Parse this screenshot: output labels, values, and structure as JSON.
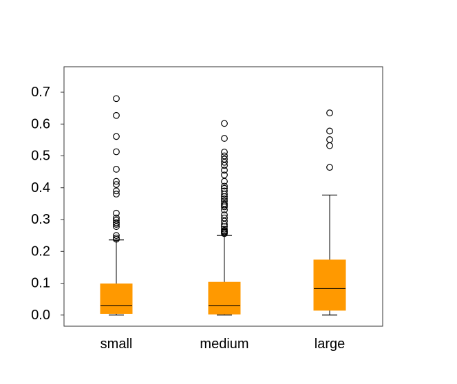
{
  "chart_data": {
    "type": "boxplot",
    "title": "",
    "xlabel": "",
    "ylabel": "",
    "ylim": [
      -0.035,
      0.78
    ],
    "yticks": [
      0.0,
      0.1,
      0.2,
      0.3,
      0.4,
      0.5,
      0.6,
      0.7
    ],
    "ytick_labels": [
      "0.0",
      "0.1",
      "0.2",
      "0.3",
      "0.4",
      "0.5",
      "0.6",
      "0.7"
    ],
    "grid": false,
    "box_color": "#ff9900",
    "median_color": "#000000",
    "categories": [
      "small",
      "medium",
      "large"
    ],
    "boxes": [
      {
        "name": "small",
        "whisker_low": 0.0,
        "q1": 0.005,
        "median": 0.03,
        "q3": 0.098,
        "whisker_high": 0.236,
        "outliers": [
          0.68,
          0.627,
          0.561,
          0.513,
          0.458,
          0.42,
          0.41,
          0.39,
          0.38,
          0.32,
          0.305,
          0.298,
          0.29,
          0.285,
          0.278,
          0.25,
          0.242,
          0.238
        ]
      },
      {
        "name": "medium",
        "whisker_low": 0.0,
        "q1": 0.003,
        "median": 0.03,
        "q3": 0.103,
        "whisker_high": 0.25,
        "outliers": [
          0.602,
          0.555,
          0.512,
          0.5,
          0.49,
          0.48,
          0.47,
          0.455,
          0.44,
          0.42,
          0.405,
          0.398,
          0.39,
          0.38,
          0.372,
          0.365,
          0.358,
          0.35,
          0.345,
          0.34,
          0.33,
          0.315,
          0.305,
          0.295,
          0.285,
          0.278,
          0.27,
          0.265,
          0.262,
          0.26,
          0.256
        ]
      },
      {
        "name": "large",
        "whisker_low": 0.0,
        "q1": 0.015,
        "median": 0.083,
        "q3": 0.173,
        "whisker_high": 0.377,
        "outliers": [
          0.635,
          0.578,
          0.551,
          0.532,
          0.464
        ]
      }
    ]
  }
}
